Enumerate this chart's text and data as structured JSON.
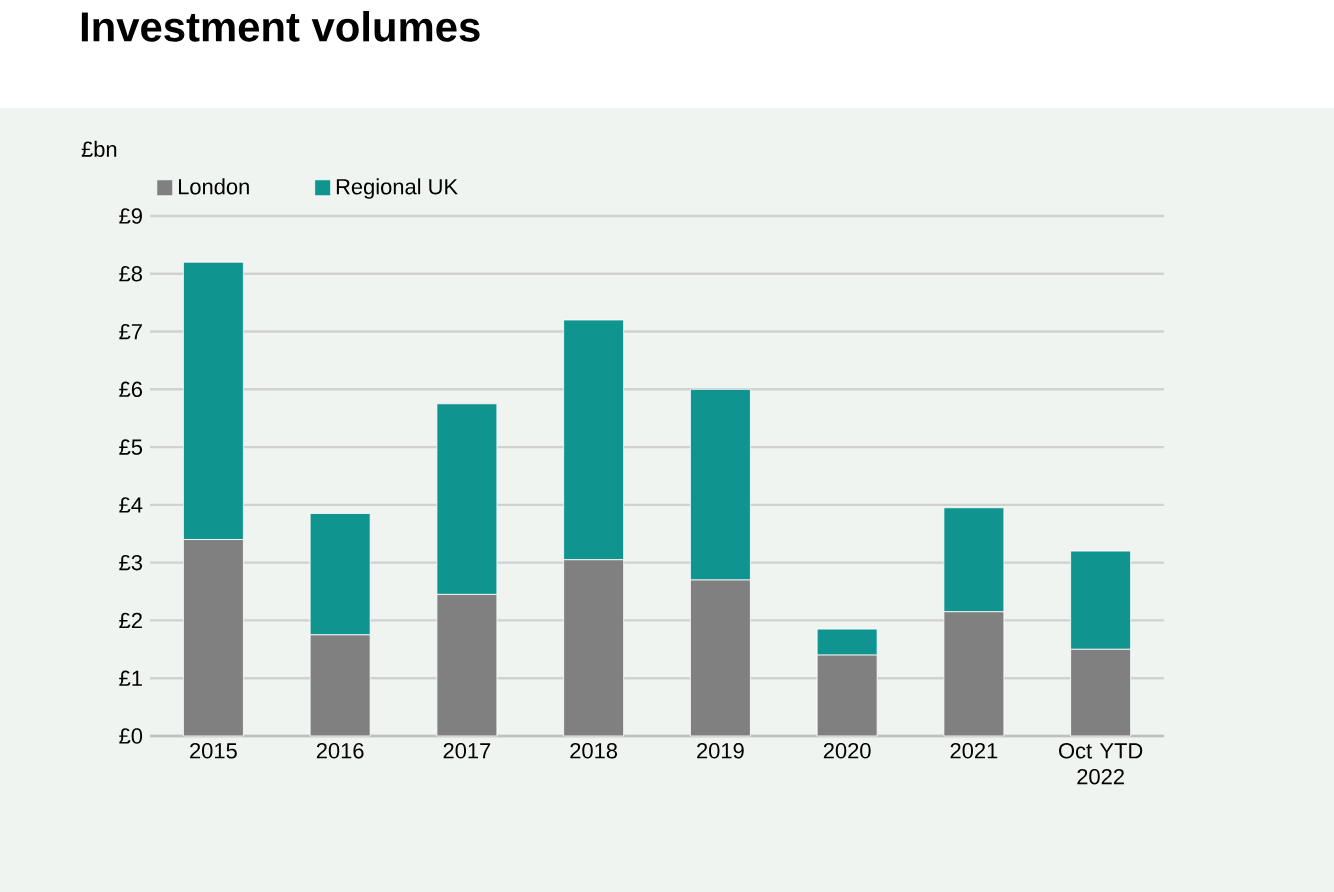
{
  "chart_data": {
    "type": "bar",
    "title": "Investment volumes",
    "ylabel": "£bn",
    "stacked": true,
    "categories": [
      "2015",
      "2016",
      "2017",
      "2018",
      "2019",
      "2020",
      "2021",
      "Oct YTD 2022"
    ],
    "series": [
      {
        "name": "London",
        "color": "#808080",
        "values": [
          3.4,
          1.75,
          2.45,
          3.05,
          2.7,
          1.4,
          2.15,
          1.5
        ]
      },
      {
        "name": "Regional UK",
        "color": "#10948f",
        "values": [
          4.8,
          2.1,
          3.3,
          4.15,
          3.3,
          0.45,
          1.8,
          1.7
        ]
      }
    ],
    "ylim": [
      0,
      9
    ],
    "yticks": [
      {
        "value": 0,
        "label": "£0"
      },
      {
        "value": 1,
        "label": "£1"
      },
      {
        "value": 2,
        "label": "£2"
      },
      {
        "value": 3,
        "label": "£3"
      },
      {
        "value": 4,
        "label": "£4"
      },
      {
        "value": 5,
        "label": "£5"
      },
      {
        "value": 6,
        "label": "£6"
      },
      {
        "value": 7,
        "label": "£7"
      },
      {
        "value": 8,
        "label": "£8"
      },
      {
        "value": 9,
        "label": "£9"
      }
    ],
    "grid": "y",
    "legend": "top left"
  }
}
